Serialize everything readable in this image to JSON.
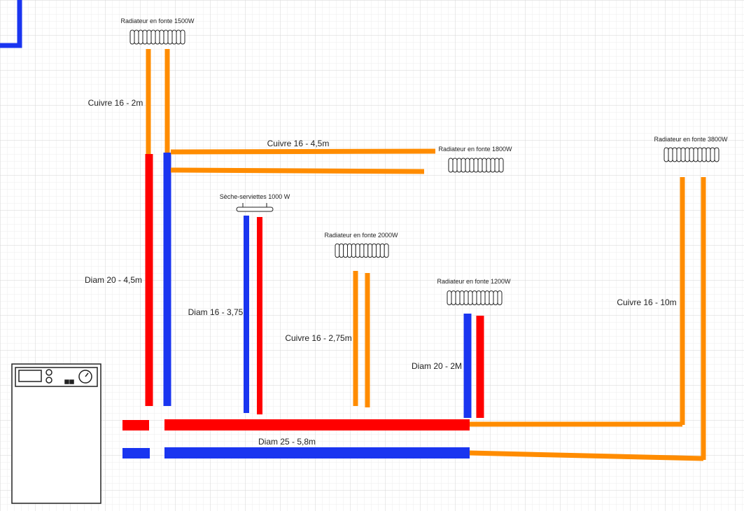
{
  "radiators": [
    {
      "label": "Radiateur en fonte 1500W"
    },
    {
      "label": "Radiateur en fonte 1800W"
    },
    {
      "label": "Radiateur en fonte 3800W"
    },
    {
      "label": "Sèche-serviettes 1000 W"
    },
    {
      "label": "Radiateur en fonte 2000W"
    },
    {
      "label": "Radiateur en fonte 1200W"
    }
  ],
  "pipes": [
    {
      "label": "Cuivre 16 - 2m"
    },
    {
      "label": "Cuivre 16 - 4,5m"
    },
    {
      "label": "Diam 20 - 4,5m"
    },
    {
      "label": "Diam 16 - 3,75"
    },
    {
      "label": "Cuivre 16 - 2,75m"
    },
    {
      "label": "Diam 20 - 2M"
    },
    {
      "label": "Cuivre 16 - 10m"
    },
    {
      "label": "Diam 25 - 5,8m"
    }
  ]
}
